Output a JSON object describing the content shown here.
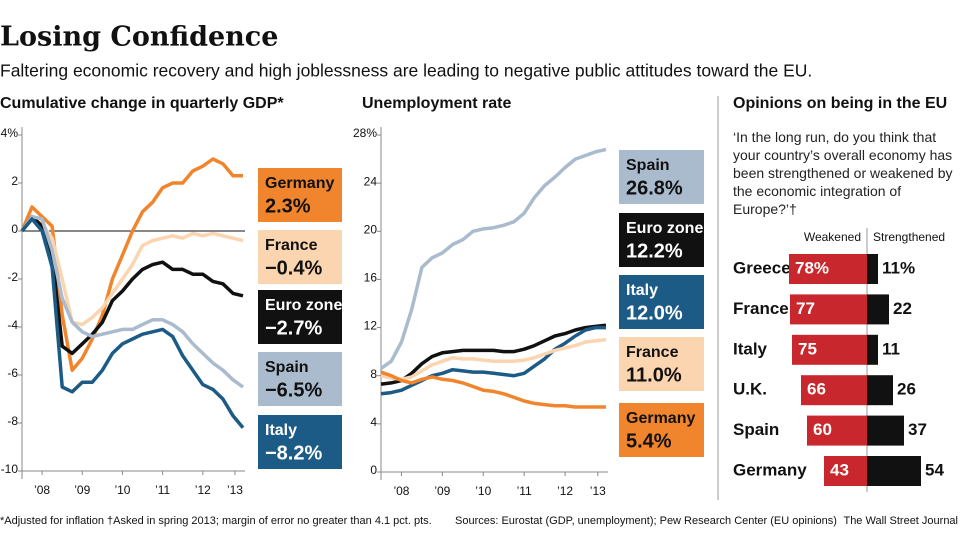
{
  "title": "Losing Confidence",
  "subtitle": "Faltering economic recovery and high joblessness are leading to negative public attitudes toward the EU.",
  "footnote": "*Adjusted for inflation  †Asked in spring 2013; margin of error no greater than 4.1 pct. pts.",
  "sources": "Sources: Eurostat (GDP, unemployment); Pew Research Center (EU opinions)",
  "credit": "The Wall Street Journal",
  "chart_data": [
    {
      "type": "line",
      "title": "Cumulative change in quarterly GDP*",
      "x": [
        2008,
        2008.25,
        2008.5,
        2008.75,
        2009,
        2009.25,
        2009.5,
        2009.75,
        2010,
        2010.25,
        2010.5,
        2010.75,
        2011,
        2011.25,
        2011.5,
        2011.75,
        2012,
        2012.25,
        2012.5,
        2012.75,
        2013,
        2013.25,
        2013.5
      ],
      "xlim": [
        2008,
        2013.5
      ],
      "xticks": [
        {
          "value": 2008.5,
          "label": "’08"
        },
        {
          "value": 2009.5,
          "label": "’09"
        },
        {
          "value": 2010.5,
          "label": "’10"
        },
        {
          "value": 2011.5,
          "label": "’11"
        },
        {
          "value": 2012.5,
          "label": "’12"
        },
        {
          "value": 2013.3,
          "label": "’13"
        }
      ],
      "ylim": [
        -10,
        4
      ],
      "yticks": [
        {
          "value": 4,
          "label": "4%"
        },
        2,
        0,
        -2,
        -4,
        -6,
        -8,
        -10
      ],
      "series": [
        {
          "name": "Germany",
          "color": "#f0852d",
          "end_label": "2.3%",
          "values": [
            0,
            1.0,
            0.6,
            0.2,
            -3.5,
            -5.8,
            -5.3,
            -4.5,
            -3.5,
            -2.0,
            -1.0,
            0,
            0.8,
            1.2,
            1.8,
            2.0,
            2.0,
            2.5,
            2.7,
            3.0,
            2.8,
            2.3,
            2.3
          ]
        },
        {
          "name": "France",
          "color": "#fbd5b0",
          "end_label": "−0.4%",
          "values": [
            0,
            0.5,
            0.3,
            -0.3,
            -2.0,
            -3.8,
            -3.9,
            -3.6,
            -3.2,
            -2.6,
            -2.0,
            -1.4,
            -0.6,
            -0.4,
            -0.3,
            -0.2,
            -0.3,
            -0.1,
            -0.2,
            -0.1,
            -0.2,
            -0.3,
            -0.4
          ]
        },
        {
          "name": "Euro zone",
          "color": "#111111",
          "end_label": "−2.7%",
          "values": [
            0,
            0.6,
            0.2,
            -1.0,
            -4.8,
            -5.1,
            -4.7,
            -4.3,
            -3.8,
            -2.9,
            -2.5,
            -2.0,
            -1.6,
            -1.4,
            -1.3,
            -1.6,
            -1.6,
            -1.8,
            -1.8,
            -2.1,
            -2.2,
            -2.6,
            -2.7
          ]
        },
        {
          "name": "Spain",
          "color": "#a9bbcd",
          "end_label": "−6.5%",
          "values": [
            0,
            0.6,
            0.5,
            -0.8,
            -2.8,
            -3.8,
            -4.2,
            -4.4,
            -4.3,
            -4.2,
            -4.1,
            -4.1,
            -3.9,
            -3.7,
            -3.7,
            -3.9,
            -4.2,
            -4.7,
            -5.1,
            -5.5,
            -5.8,
            -6.2,
            -6.5
          ]
        },
        {
          "name": "Italy",
          "color": "#1d5b87",
          "end_label": "−8.2%",
          "values": [
            0,
            0.5,
            0.0,
            -1.5,
            -6.5,
            -6.7,
            -6.3,
            -6.3,
            -5.8,
            -5.1,
            -4.7,
            -4.5,
            -4.3,
            -4.2,
            -4.1,
            -4.4,
            -5.2,
            -5.8,
            -6.4,
            -6.6,
            -7.0,
            -7.7,
            -8.2
          ]
        }
      ]
    },
    {
      "type": "line",
      "title": "Unemployment rate",
      "x": [
        2008,
        2008.25,
        2008.5,
        2008.75,
        2009,
        2009.25,
        2009.5,
        2009.75,
        2010,
        2010.25,
        2010.5,
        2010.75,
        2011,
        2011.25,
        2011.5,
        2011.75,
        2012,
        2012.25,
        2012.5,
        2012.75,
        2013,
        2013.25,
        2013.5
      ],
      "xlim": [
        2008,
        2013.5
      ],
      "xticks": [
        {
          "value": 2008.5,
          "label": "’08"
        },
        {
          "value": 2009.5,
          "label": "’09"
        },
        {
          "value": 2010.5,
          "label": "’10"
        },
        {
          "value": 2011.5,
          "label": "’11"
        },
        {
          "value": 2012.5,
          "label": "’12"
        },
        {
          "value": 2013.3,
          "label": "’13"
        }
      ],
      "ylim": [
        0,
        28
      ],
      "yticks": [
        {
          "value": 28,
          "label": "28%"
        },
        24,
        20,
        16,
        12,
        8,
        4,
        0
      ],
      "series": [
        {
          "name": "Spain",
          "color": "#a9bbcd",
          "end_label": "26.8%",
          "values": [
            8.6,
            9.2,
            10.8,
            13.5,
            17.0,
            17.8,
            18.2,
            18.9,
            19.3,
            20.0,
            20.2,
            20.3,
            20.5,
            20.8,
            21.5,
            22.8,
            23.8,
            24.5,
            25.3,
            26.0,
            26.3,
            26.6,
            26.8
          ]
        },
        {
          "name": "Euro zone",
          "color": "#111111",
          "end_label": "12.2%",
          "values": [
            7.3,
            7.4,
            7.6,
            8.2,
            9.0,
            9.6,
            9.9,
            10.0,
            10.1,
            10.1,
            10.1,
            10.1,
            10.0,
            10.0,
            10.2,
            10.5,
            10.9,
            11.3,
            11.5,
            11.8,
            12.0,
            12.1,
            12.2
          ]
        },
        {
          "name": "Italy",
          "color": "#1d5b87",
          "end_label": "12.0%",
          "values": [
            6.5,
            6.6,
            6.8,
            7.2,
            7.6,
            8.0,
            8.2,
            8.5,
            8.4,
            8.3,
            8.3,
            8.2,
            8.1,
            8.0,
            8.2,
            8.8,
            9.4,
            10.2,
            10.7,
            11.3,
            11.8,
            12.0,
            12.0
          ]
        },
        {
          "name": "France",
          "color": "#fbd5b0",
          "end_label": "11.0%",
          "values": [
            8.0,
            7.8,
            7.7,
            7.9,
            8.4,
            8.9,
            9.2,
            9.5,
            9.4,
            9.4,
            9.3,
            9.2,
            9.2,
            9.2,
            9.3,
            9.5,
            9.8,
            10.1,
            10.3,
            10.5,
            10.8,
            10.9,
            11.0
          ]
        },
        {
          "name": "Germany",
          "color": "#f0852d",
          "end_label": "5.4%",
          "values": [
            8.3,
            8.0,
            7.6,
            7.4,
            7.7,
            7.9,
            7.7,
            7.6,
            7.4,
            7.1,
            6.8,
            6.7,
            6.5,
            6.2,
            5.9,
            5.7,
            5.6,
            5.5,
            5.5,
            5.4,
            5.4,
            5.4,
            5.4
          ]
        }
      ]
    },
    {
      "type": "bar",
      "title": "Opinions on being in the EU",
      "question": "‘In the long run, do you think that your country’s overall economy has been strengthened or weakened by the economic integration of Europe?’†",
      "categories": [
        "Greece",
        "France",
        "Italy",
        "U.K.",
        "Spain",
        "Germany"
      ],
      "series": [
        {
          "name": "Weakened",
          "color": "#c8282d",
          "values": [
            78,
            77,
            75,
            66,
            60,
            43
          ],
          "value_labels": [
            "78%",
            "77",
            "75",
            "66",
            "60",
            "43"
          ]
        },
        {
          "name": "Strengthened",
          "color": "#111111",
          "values": [
            11,
            22,
            11,
            26,
            37,
            54
          ],
          "value_labels": [
            "11%",
            "22",
            "11",
            "26",
            "37",
            "54"
          ]
        }
      ]
    }
  ]
}
